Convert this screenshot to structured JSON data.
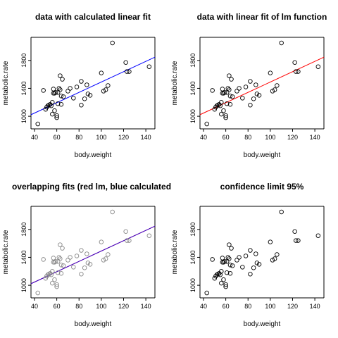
{
  "chart_data": [
    {
      "type": "scatter",
      "title": "data with calculated linear fit",
      "xlabel": "body.weight",
      "ylabel": "metabolic.rate",
      "xlim": [
        40,
        145
      ],
      "ylim": [
        870,
        2080
      ],
      "xticks": [
        "40",
        "60",
        "80",
        "100",
        "120",
        "140"
      ],
      "yticks": [
        "1000",
        "1400",
        "1800"
      ],
      "point_color": "#000000",
      "fits": [
        {
          "color": "#0000ff",
          "intercept": 750,
          "slope": 7.4
        }
      ],
      "confidence_band": false
    },
    {
      "type": "scatter",
      "title": "data with linear fit of lm function",
      "xlabel": "body.weight",
      "ylabel": "metabolic.rate",
      "xlim": [
        40,
        145
      ],
      "ylim": [
        870,
        2080
      ],
      "xticks": [
        "40",
        "60",
        "80",
        "100",
        "120",
        "140"
      ],
      "yticks": [
        "1000",
        "1400",
        "1800"
      ],
      "point_color": "#000000",
      "fits": [
        {
          "color": "#ff0000",
          "intercept": 750,
          "slope": 7.4
        }
      ],
      "confidence_band": false
    },
    {
      "type": "scatter",
      "title": "overlapping fits (red lm, blue calculated",
      "xlabel": "body.weight",
      "ylabel": "metabolic.rate",
      "xlim": [
        40,
        145
      ],
      "ylim": [
        870,
        2080
      ],
      "xticks": [
        "40",
        "60",
        "80",
        "100",
        "120",
        "140"
      ],
      "yticks": [
        "1000",
        "1400",
        "1800"
      ],
      "point_color": "#888888",
      "fits": [
        {
          "color": "#ff0000",
          "intercept": 750,
          "slope": 7.4
        },
        {
          "color": "#0000ff",
          "intercept": 750,
          "slope": 7.4,
          "dashed": true
        }
      ],
      "confidence_band": false
    },
    {
      "type": "scatter",
      "title": "confidence limit 95%",
      "xlabel": "body.weight",
      "ylabel": "metabolic.rate",
      "xlim": [
        40,
        145
      ],
      "ylim": [
        870,
        2080
      ],
      "xticks": [
        "40",
        "60",
        "80",
        "100",
        "120",
        "140"
      ],
      "yticks": [
        "1000",
        "1400",
        "1800"
      ],
      "point_color": "#000000",
      "fits": [],
      "confidence_band": false
    }
  ],
  "points": {
    "x": [
      43,
      48,
      50,
      51,
      52,
      53,
      54,
      55,
      56,
      56,
      57,
      57,
      58,
      58,
      59,
      60,
      60,
      61,
      61,
      62,
      63,
      63,
      64,
      64,
      65,
      66,
      70,
      72,
      75,
      78,
      82,
      82,
      85,
      87,
      88,
      90,
      100,
      102,
      104,
      106,
      110,
      122,
      123,
      125,
      143
    ],
    "y": [
      890,
      1370,
      1100,
      1130,
      1150,
      1160,
      1170,
      1150,
      1200,
      1030,
      1390,
      1330,
      1330,
      1080,
      1340,
      1010,
      980,
      1340,
      1180,
      1400,
      1580,
      1380,
      1290,
      1170,
      1530,
      1280,
      1360,
      1400,
      1260,
      1420,
      1160,
      1500,
      1250,
      1450,
      1320,
      1300,
      1620,
      1360,
      1380,
      1440,
      2050,
      1770,
      1640,
      1640,
      1710
    ]
  }
}
